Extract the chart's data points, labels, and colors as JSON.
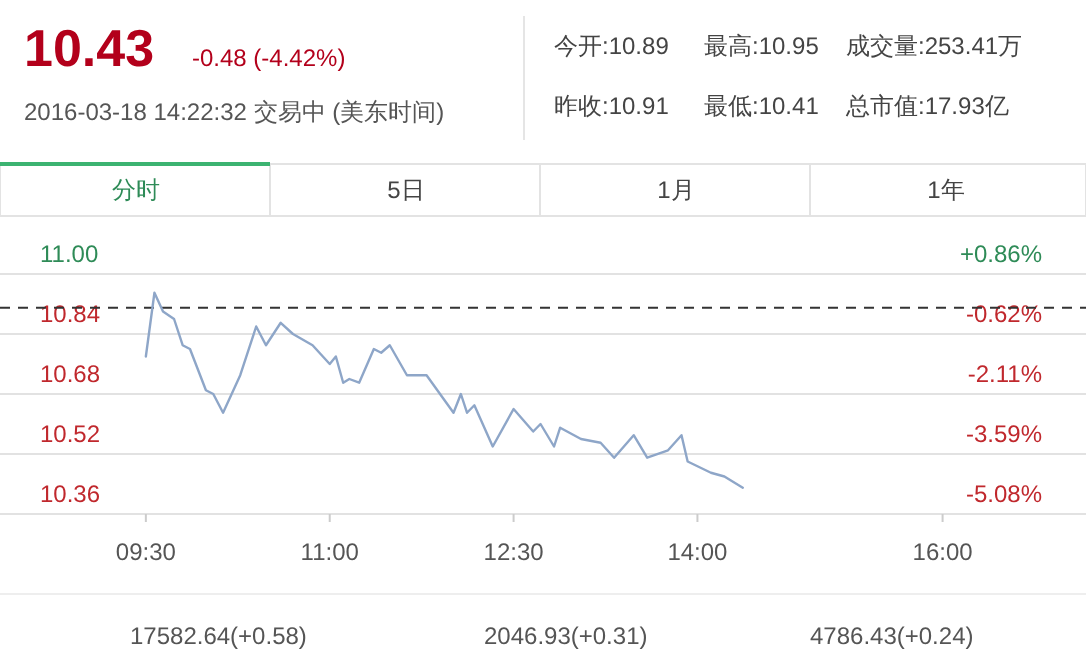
{
  "chart_data": {
    "type": "line",
    "title": "10.43",
    "subtitle": "-0.48 (-4.42%)",
    "annotations": [
      "2016-03-18 14:22:32 交易中 (美东时间)",
      "今开:10.89",
      "最高:10.95",
      "成交量:253.41万",
      "昨收:10.91",
      "最低:10.41",
      "总市值:17.93亿",
      "分时",
      "5日",
      "1月",
      "1年",
      "17582.64(+0.58)",
      "2046.93(+0.31)",
      "4786.43(+0.24)"
    ],
    "series": [
      {
        "color": "#8ea6c8",
        "x": [
          9.5,
          9.57,
          9.64,
          9.73,
          9.8,
          9.86,
          9.99,
          10.05,
          10.13,
          10.27,
          10.4,
          10.48,
          10.6,
          10.7,
          10.86,
          11.0,
          11.05,
          11.11,
          11.16,
          11.24,
          11.36,
          11.42,
          11.49,
          11.63,
          11.79,
          11.9,
          12.01,
          12.07,
          12.12,
          12.18,
          12.33,
          12.5,
          12.66,
          12.72,
          12.83,
          12.88,
          13.05,
          13.21,
          13.32,
          13.48,
          13.59,
          13.76,
          13.87,
          13.92,
          14.11,
          14.22,
          14.37
        ],
        "values": [
          10.78,
          10.95,
          10.9,
          10.88,
          10.81,
          10.8,
          10.69,
          10.68,
          10.63,
          10.73,
          10.86,
          10.81,
          10.87,
          10.84,
          10.81,
          10.76,
          10.78,
          10.71,
          10.72,
          10.71,
          10.8,
          10.79,
          10.81,
          10.73,
          10.73,
          10.68,
          10.63,
          10.68,
          10.63,
          10.65,
          10.54,
          10.64,
          10.58,
          10.6,
          10.54,
          10.59,
          10.56,
          10.55,
          10.51,
          10.57,
          10.51,
          10.53,
          10.57,
          10.5,
          10.47,
          10.46,
          10.43
        ]
      }
    ],
    "xlim": [
      8.31,
      17.17
    ],
    "xticks": [
      {
        "value": 9.5,
        "label": "09:30"
      },
      {
        "value": 11,
        "label": "11:00"
      },
      {
        "value": 12.5,
        "label": "12:30"
      },
      {
        "value": 14,
        "label": "14:00"
      },
      {
        "value": 16,
        "label": "16:00"
      }
    ],
    "ylim": [
      10.36,
      11.0
    ],
    "yticks": [
      {
        "value": 11,
        "label": "11.00"
      },
      {
        "value": 10.84,
        "label": "10.84"
      },
      {
        "value": 10.68,
        "label": "10.68"
      },
      {
        "value": 10.52,
        "label": "10.52"
      },
      {
        "value": 10.36,
        "label": "10.36"
      }
    ],
    "y2lim": [
      -5.08,
      0.86
    ],
    "y2ticks": [
      {
        "value": 0.86,
        "label": "+0.86%"
      },
      {
        "value": -0.62,
        "label": "-0.62%"
      },
      {
        "value": -2.11,
        "label": "-2.11%"
      },
      {
        "value": -3.59,
        "label": "-3.59%"
      },
      {
        "value": -5.08,
        "label": "-5.08%"
      }
    ],
    "ref_lines": [
      {
        "axis": "y",
        "value": 10.91,
        "line_style": "dashed",
        "color": "#333333"
      }
    ],
    "grid": "y",
    "marker": "none",
    "line_style": "solid"
  }
}
